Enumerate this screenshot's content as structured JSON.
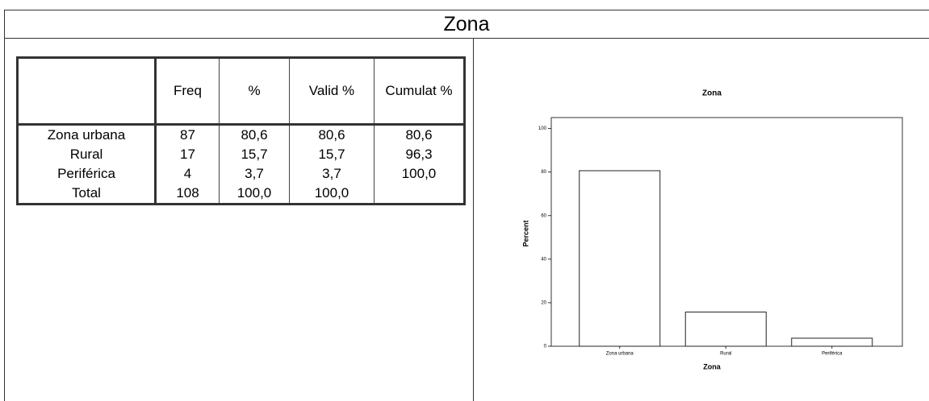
{
  "header": {
    "title": "Zona"
  },
  "table": {
    "headers": [
      "",
      "Freq",
      "%",
      "Valid %",
      "Cumulat %"
    ],
    "rows": [
      [
        "Zona urbana",
        "87",
        "80,6",
        "80,6",
        "80,6"
      ],
      [
        "Rural",
        "17",
        "15,7",
        "15,7",
        "96,3"
      ],
      [
        "Periférica",
        "4",
        "3,7",
        "3,7",
        "100,0"
      ],
      [
        "Total",
        "108",
        "100,0",
        "100,0",
        ""
      ]
    ]
  },
  "chart_data": {
    "type": "bar",
    "title": "Zona",
    "x_label": "Zona",
    "y_label": "Percent",
    "categories": [
      "Zona urbana",
      "Rural",
      "Periférica"
    ],
    "values": [
      80.6,
      15.7,
      3.7
    ],
    "color": "#ffffff",
    "ylim": [
      0,
      105
    ],
    "yticks": [
      0,
      20,
      40,
      60,
      80,
      100
    ],
    "grid": false
  }
}
